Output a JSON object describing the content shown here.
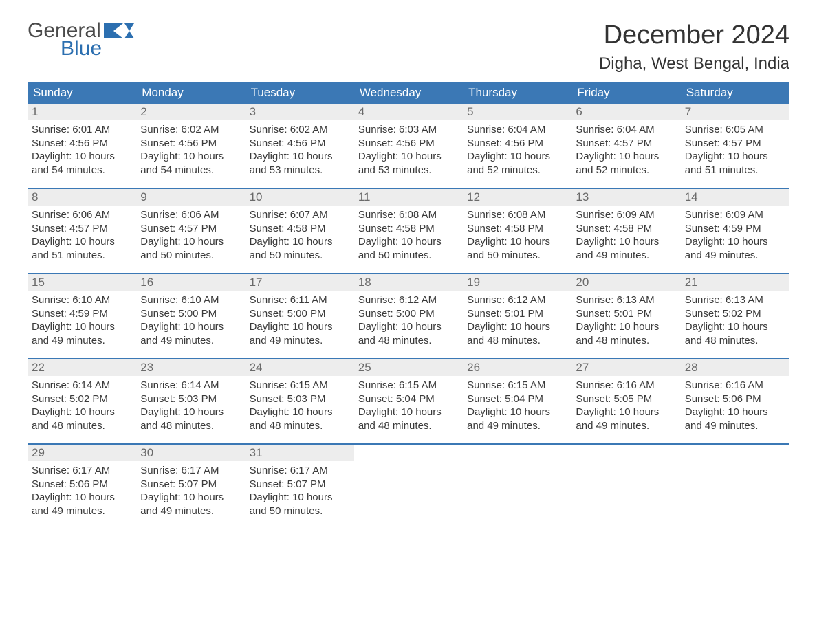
{
  "brand": {
    "part1": "General",
    "part2": "Blue"
  },
  "title": "December 2024",
  "location": "Digha, West Bengal, India",
  "colors": {
    "header_bg": "#3b78b5",
    "header_text": "#ffffff",
    "daynum_bg": "#ededed",
    "daynum_text": "#6a6a6a",
    "body_text": "#3a3a3a",
    "rule": "#3b78b5",
    "brand_gray": "#4a4a4a",
    "brand_blue": "#2c6fb0"
  },
  "day_names": [
    "Sunday",
    "Monday",
    "Tuesday",
    "Wednesday",
    "Thursday",
    "Friday",
    "Saturday"
  ],
  "weeks": [
    [
      {
        "n": "1",
        "sunrise": "Sunrise: 6:01 AM",
        "sunset": "Sunset: 4:56 PM",
        "d1": "Daylight: 10 hours",
        "d2": "and 54 minutes."
      },
      {
        "n": "2",
        "sunrise": "Sunrise: 6:02 AM",
        "sunset": "Sunset: 4:56 PM",
        "d1": "Daylight: 10 hours",
        "d2": "and 54 minutes."
      },
      {
        "n": "3",
        "sunrise": "Sunrise: 6:02 AM",
        "sunset": "Sunset: 4:56 PM",
        "d1": "Daylight: 10 hours",
        "d2": "and 53 minutes."
      },
      {
        "n": "4",
        "sunrise": "Sunrise: 6:03 AM",
        "sunset": "Sunset: 4:56 PM",
        "d1": "Daylight: 10 hours",
        "d2": "and 53 minutes."
      },
      {
        "n": "5",
        "sunrise": "Sunrise: 6:04 AM",
        "sunset": "Sunset: 4:56 PM",
        "d1": "Daylight: 10 hours",
        "d2": "and 52 minutes."
      },
      {
        "n": "6",
        "sunrise": "Sunrise: 6:04 AM",
        "sunset": "Sunset: 4:57 PM",
        "d1": "Daylight: 10 hours",
        "d2": "and 52 minutes."
      },
      {
        "n": "7",
        "sunrise": "Sunrise: 6:05 AM",
        "sunset": "Sunset: 4:57 PM",
        "d1": "Daylight: 10 hours",
        "d2": "and 51 minutes."
      }
    ],
    [
      {
        "n": "8",
        "sunrise": "Sunrise: 6:06 AM",
        "sunset": "Sunset: 4:57 PM",
        "d1": "Daylight: 10 hours",
        "d2": "and 51 minutes."
      },
      {
        "n": "9",
        "sunrise": "Sunrise: 6:06 AM",
        "sunset": "Sunset: 4:57 PM",
        "d1": "Daylight: 10 hours",
        "d2": "and 50 minutes."
      },
      {
        "n": "10",
        "sunrise": "Sunrise: 6:07 AM",
        "sunset": "Sunset: 4:58 PM",
        "d1": "Daylight: 10 hours",
        "d2": "and 50 minutes."
      },
      {
        "n": "11",
        "sunrise": "Sunrise: 6:08 AM",
        "sunset": "Sunset: 4:58 PM",
        "d1": "Daylight: 10 hours",
        "d2": "and 50 minutes."
      },
      {
        "n": "12",
        "sunrise": "Sunrise: 6:08 AM",
        "sunset": "Sunset: 4:58 PM",
        "d1": "Daylight: 10 hours",
        "d2": "and 50 minutes."
      },
      {
        "n": "13",
        "sunrise": "Sunrise: 6:09 AM",
        "sunset": "Sunset: 4:58 PM",
        "d1": "Daylight: 10 hours",
        "d2": "and 49 minutes."
      },
      {
        "n": "14",
        "sunrise": "Sunrise: 6:09 AM",
        "sunset": "Sunset: 4:59 PM",
        "d1": "Daylight: 10 hours",
        "d2": "and 49 minutes."
      }
    ],
    [
      {
        "n": "15",
        "sunrise": "Sunrise: 6:10 AM",
        "sunset": "Sunset: 4:59 PM",
        "d1": "Daylight: 10 hours",
        "d2": "and 49 minutes."
      },
      {
        "n": "16",
        "sunrise": "Sunrise: 6:10 AM",
        "sunset": "Sunset: 5:00 PM",
        "d1": "Daylight: 10 hours",
        "d2": "and 49 minutes."
      },
      {
        "n": "17",
        "sunrise": "Sunrise: 6:11 AM",
        "sunset": "Sunset: 5:00 PM",
        "d1": "Daylight: 10 hours",
        "d2": "and 49 minutes."
      },
      {
        "n": "18",
        "sunrise": "Sunrise: 6:12 AM",
        "sunset": "Sunset: 5:00 PM",
        "d1": "Daylight: 10 hours",
        "d2": "and 48 minutes."
      },
      {
        "n": "19",
        "sunrise": "Sunrise: 6:12 AM",
        "sunset": "Sunset: 5:01 PM",
        "d1": "Daylight: 10 hours",
        "d2": "and 48 minutes."
      },
      {
        "n": "20",
        "sunrise": "Sunrise: 6:13 AM",
        "sunset": "Sunset: 5:01 PM",
        "d1": "Daylight: 10 hours",
        "d2": "and 48 minutes."
      },
      {
        "n": "21",
        "sunrise": "Sunrise: 6:13 AM",
        "sunset": "Sunset: 5:02 PM",
        "d1": "Daylight: 10 hours",
        "d2": "and 48 minutes."
      }
    ],
    [
      {
        "n": "22",
        "sunrise": "Sunrise: 6:14 AM",
        "sunset": "Sunset: 5:02 PM",
        "d1": "Daylight: 10 hours",
        "d2": "and 48 minutes."
      },
      {
        "n": "23",
        "sunrise": "Sunrise: 6:14 AM",
        "sunset": "Sunset: 5:03 PM",
        "d1": "Daylight: 10 hours",
        "d2": "and 48 minutes."
      },
      {
        "n": "24",
        "sunrise": "Sunrise: 6:15 AM",
        "sunset": "Sunset: 5:03 PM",
        "d1": "Daylight: 10 hours",
        "d2": "and 48 minutes."
      },
      {
        "n": "25",
        "sunrise": "Sunrise: 6:15 AM",
        "sunset": "Sunset: 5:04 PM",
        "d1": "Daylight: 10 hours",
        "d2": "and 48 minutes."
      },
      {
        "n": "26",
        "sunrise": "Sunrise: 6:15 AM",
        "sunset": "Sunset: 5:04 PM",
        "d1": "Daylight: 10 hours",
        "d2": "and 49 minutes."
      },
      {
        "n": "27",
        "sunrise": "Sunrise: 6:16 AM",
        "sunset": "Sunset: 5:05 PM",
        "d1": "Daylight: 10 hours",
        "d2": "and 49 minutes."
      },
      {
        "n": "28",
        "sunrise": "Sunrise: 6:16 AM",
        "sunset": "Sunset: 5:06 PM",
        "d1": "Daylight: 10 hours",
        "d2": "and 49 minutes."
      }
    ],
    [
      {
        "n": "29",
        "sunrise": "Sunrise: 6:17 AM",
        "sunset": "Sunset: 5:06 PM",
        "d1": "Daylight: 10 hours",
        "d2": "and 49 minutes."
      },
      {
        "n": "30",
        "sunrise": "Sunrise: 6:17 AM",
        "sunset": "Sunset: 5:07 PM",
        "d1": "Daylight: 10 hours",
        "d2": "and 49 minutes."
      },
      {
        "n": "31",
        "sunrise": "Sunrise: 6:17 AM",
        "sunset": "Sunset: 5:07 PM",
        "d1": "Daylight: 10 hours",
        "d2": "and 50 minutes."
      },
      {
        "empty": true
      },
      {
        "empty": true
      },
      {
        "empty": true
      },
      {
        "empty": true
      }
    ]
  ]
}
